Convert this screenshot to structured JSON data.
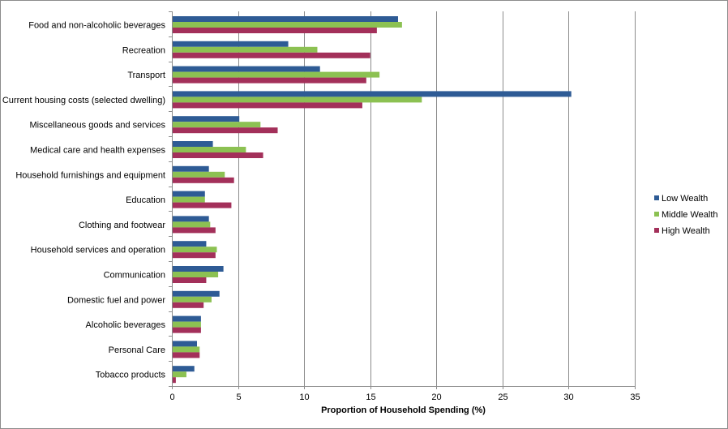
{
  "chart_data": {
    "type": "bar",
    "orientation": "horizontal",
    "categories": [
      "Food and non-alcoholic beverages",
      "Recreation",
      "Transport",
      "Current housing costs (selected dwelling)",
      "Miscellaneous goods and services",
      "Medical care and health expenses",
      "Household furnishings and equipment",
      "Education",
      "Clothing and footwear",
      "Household services and operation",
      "Communication",
      "Domestic fuel and power",
      "Alcoholic beverages",
      "Personal Care",
      "Tobacco products"
    ],
    "series": [
      {
        "name": "Low Wealth",
        "color": "#2e5b95",
        "values": [
          17.1,
          8.8,
          11.2,
          30.2,
          5.1,
          3.1,
          2.8,
          2.5,
          2.8,
          2.6,
          3.9,
          3.6,
          2.2,
          1.9,
          1.7
        ]
      },
      {
        "name": "Middle Wealth",
        "color": "#8cc152",
        "values": [
          17.4,
          11.0,
          15.7,
          18.9,
          6.7,
          5.6,
          4.0,
          2.5,
          2.9,
          3.4,
          3.5,
          3.0,
          2.2,
          2.1,
          1.1
        ]
      },
      {
        "name": "High Wealth",
        "color": "#a3305a",
        "values": [
          15.5,
          15.0,
          14.7,
          14.4,
          8.0,
          6.9,
          4.7,
          4.5,
          3.3,
          3.3,
          2.6,
          2.4,
          2.2,
          2.1,
          0.3
        ]
      }
    ],
    "xlabel": "Proportion of Household Spending (%)",
    "xlim": [
      0,
      35
    ],
    "xticks": [
      0,
      5,
      10,
      15,
      20,
      25,
      30,
      35
    ],
    "grid": "vertical",
    "legend": "right"
  }
}
